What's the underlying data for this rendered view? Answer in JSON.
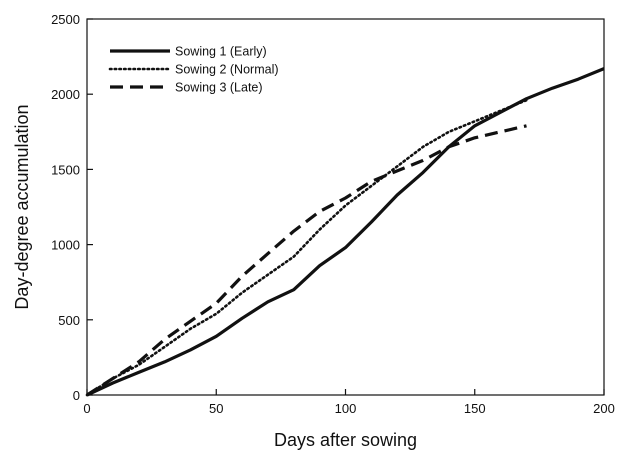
{
  "chart_data": {
    "type": "line",
    "title": "",
    "xlabel": "Days after sowing",
    "ylabel": "Day-degree accumulation",
    "xlim": [
      0,
      200
    ],
    "ylim": [
      0,
      2500
    ],
    "xticks": [
      0,
      50,
      100,
      150,
      200
    ],
    "yticks": [
      0,
      500,
      1000,
      1500,
      2000,
      2500
    ],
    "grid": false,
    "legend_position": "top-left",
    "series": [
      {
        "name": "Sowing 1 (Early)",
        "style": "solid",
        "color": "#111111",
        "x": [
          0,
          10,
          20,
          30,
          40,
          50,
          60,
          70,
          80,
          90,
          100,
          110,
          120,
          130,
          140,
          150,
          160,
          170,
          180,
          190,
          200
        ],
        "y": [
          0,
          80,
          150,
          220,
          300,
          390,
          510,
          620,
          700,
          860,
          980,
          1150,
          1330,
          1480,
          1650,
          1790,
          1880,
          1970,
          2040,
          2100,
          2170
        ]
      },
      {
        "name": "Sowing 2 (Normal)",
        "style": "dotted",
        "color": "#111111",
        "x": [
          0,
          10,
          20,
          30,
          40,
          50,
          60,
          70,
          80,
          90,
          100,
          110,
          120,
          130,
          140,
          150,
          160,
          170
        ],
        "y": [
          0,
          110,
          200,
          320,
          440,
          540,
          680,
          800,
          920,
          1100,
          1260,
          1390,
          1520,
          1650,
          1750,
          1820,
          1890,
          1960
        ]
      },
      {
        "name": "Sowing 3 (Late)",
        "style": "dashed",
        "color": "#111111",
        "x": [
          0,
          10,
          20,
          30,
          40,
          50,
          60,
          70,
          80,
          90,
          100,
          110,
          120,
          130,
          140,
          150,
          160,
          170
        ],
        "y": [
          0,
          110,
          220,
          370,
          490,
          610,
          790,
          940,
          1090,
          1220,
          1310,
          1420,
          1490,
          1560,
          1650,
          1710,
          1750,
          1790
        ]
      }
    ]
  }
}
